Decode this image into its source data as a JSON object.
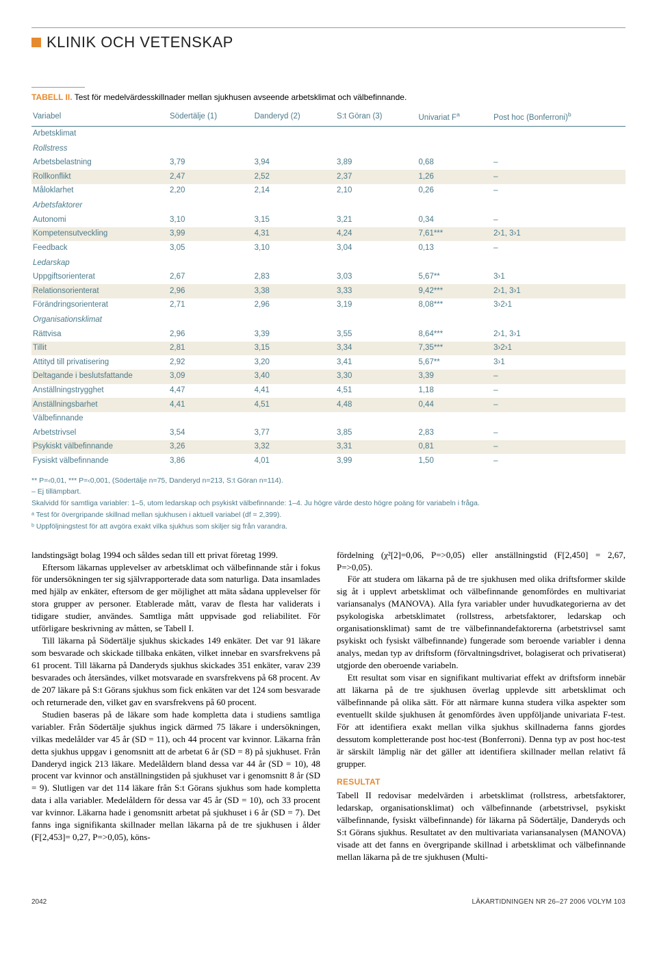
{
  "heading": "KLINIK OCH VETENSKAP",
  "colors": {
    "accent": "#e68a2e",
    "table_text": "#4a7a8a",
    "highlight_bg": "#f0ece0",
    "rule": "#999999",
    "body_text": "#000000",
    "background": "#ffffff"
  },
  "typography": {
    "heading_family": "Arial, Helvetica, sans-serif",
    "heading_size_pt": 17,
    "body_family": "Georgia, serif",
    "body_size_pt": 10,
    "table_size_pt": 9,
    "footnote_size_pt": 8
  },
  "table": {
    "label": "TABELL II.",
    "caption": "Test för medelvärdesskillnader mellan sjukhusen avseende arbetsklimat och välbefinnande.",
    "columns": [
      "Variabel",
      "Södertälje (1)",
      "Danderyd (2)",
      "S:t Göran (3)",
      "Univariat F",
      "Post hoc (Bonferroni)"
    ],
    "col_sup": [
      "",
      "",
      "",
      "",
      "a",
      "b"
    ],
    "groups": [
      {
        "title": "Arbetsklimat",
        "subgroups": [
          {
            "title": "Rollstress",
            "rows": [
              {
                "label": "Arbetsbelastning",
                "v": [
                  "3,79",
                  "3,94",
                  "3,89",
                  "0,68",
                  "–"
                ],
                "hl": false
              },
              {
                "label": "Rollkonflikt",
                "v": [
                  "2,47",
                  "2,52",
                  "2,37",
                  "1,26",
                  "–"
                ],
                "hl": true
              },
              {
                "label": "Måloklarhet",
                "v": [
                  "2,20",
                  "2,14",
                  "2,10",
                  "0,26",
                  "–"
                ],
                "hl": false
              }
            ]
          },
          {
            "title": "Arbetsfaktorer",
            "rows": [
              {
                "label": "Autonomi",
                "v": [
                  "3,10",
                  "3,15",
                  "3,21",
                  "0,34",
                  "–"
                ],
                "hl": false
              },
              {
                "label": "Kompetensutveckling",
                "v": [
                  "3,99",
                  "4,31",
                  "4,24",
                  "7,61***",
                  "2›1, 3›1"
                ],
                "hl": true
              },
              {
                "label": "Feedback",
                "v": [
                  "3,05",
                  "3,10",
                  "3,04",
                  "0,13",
                  "–"
                ],
                "hl": false
              }
            ]
          },
          {
            "title": "Ledarskap",
            "rows": [
              {
                "label": "Uppgiftsorienterat",
                "v": [
                  "2,67",
                  "2,83",
                  "3,03",
                  "5,67**",
                  "3›1"
                ],
                "hl": false
              },
              {
                "label": "Relationsorienterat",
                "v": [
                  "2,96",
                  "3,38",
                  "3,33",
                  "9,42***",
                  "2›1, 3›1"
                ],
                "hl": true
              },
              {
                "label": "Förändringsorienterat",
                "v": [
                  "2,71",
                  "2,96",
                  "3,19",
                  "8,08***",
                  "3›2›1"
                ],
                "hl": false
              }
            ]
          },
          {
            "title": "Organisationsklimat",
            "rows": [
              {
                "label": "Rättvisa",
                "v": [
                  "2,96",
                  "3,39",
                  "3,55",
                  "8,64***",
                  "2›1, 3›1"
                ],
                "hl": false
              },
              {
                "label": "Tillit",
                "v": [
                  "2,81",
                  "3,15",
                  "3,34",
                  "7,35***",
                  "3›2›1"
                ],
                "hl": true
              },
              {
                "label": "Attityd till privatisering",
                "v": [
                  "2,92",
                  "3,20",
                  "3,41",
                  "5,67**",
                  "3›1"
                ],
                "hl": false
              },
              {
                "label": "Deltagande i beslutsfattande",
                "v": [
                  "3,09",
                  "3,40",
                  "3,30",
                  "3,39",
                  "–"
                ],
                "hl": true
              },
              {
                "label": "Anställningstrygghet",
                "v": [
                  "4,47",
                  "4,41",
                  "4,51",
                  "1,18",
                  "–"
                ],
                "hl": false
              },
              {
                "label": "Anställningsbarhet",
                "v": [
                  "4,41",
                  "4,51",
                  "4,48",
                  "0,44",
                  "–"
                ],
                "hl": true
              }
            ]
          }
        ]
      },
      {
        "title": "Välbefinnande",
        "subgroups": [
          {
            "title": null,
            "rows": [
              {
                "label": "Arbetstrivsel",
                "v": [
                  "3,54",
                  "3,77",
                  "3,85",
                  "2,83",
                  "–"
                ],
                "hl": false
              },
              {
                "label": "Psykiskt välbefinnande",
                "v": [
                  "3,26",
                  "3,32",
                  "3,31",
                  "0,81",
                  "–"
                ],
                "hl": true
              },
              {
                "label": "Fysiskt välbefinnande",
                "v": [
                  "3,86",
                  "4,01",
                  "3,99",
                  "1,50",
                  "–"
                ],
                "hl": false
              }
            ]
          }
        ]
      }
    ]
  },
  "footnotes": [
    "** P=‹0,01, *** P=‹0,001, (Södertälje n=75, Danderyd n=213, S:t Göran n=114).",
    "– Ej tillämpbart.",
    "Skalvidd för samtliga variabler: 1–5, utom ledarskap och psykiskt välbefinnande: 1–4. Ju högre värde desto högre poäng för variabeln i fråga.",
    "ᵃ Test för övergripande skillnad mellan sjukhusen i aktuell variabel (df = 2,399).",
    "ᵇ Uppföljningstest för att avgöra exakt vilka sjukhus som skiljer sig från varandra."
  ],
  "body": {
    "left": [
      "landstingsägt bolag 1994 och såldes sedan till ett privat företag 1999.",
      "Eftersom läkarnas upplevelser av arbetsklimat och välbefinnande står i fokus för undersökningen ter sig självrapporterade data som naturliga. Data insamlades med hjälp av enkäter, eftersom de ger möjlighet att mäta sådana upplevelser för stora grupper av personer. Etablerade mått, varav de flesta har validerats i tidigare studier, användes. Samtliga mått uppvisade god reliabilitet. För utförligare beskrivning av måtten, se Tabell I.",
      "Till läkarna på Södertälje sjukhus skickades 149 enkäter. Det var 91 läkare som besvarade och skickade tillbaka enkäten, vilket innebar en svarsfrekvens på 61 procent. Till läkarna på Danderyds sjukhus skickades 351 enkäter, varav 239 besvarades och återsändes, vilket motsvarade en svarsfrekvens på 68 procent. Av de 207 läkare på S:t Görans sjukhus som fick enkäten var det 124 som besvarade och returnerade den, vilket gav en svarsfrekvens på 60 procent.",
      "Studien baseras på de läkare som hade kompletta data i studiens samtliga variabler. Från Södertälje sjukhus ingick därmed 75 läkare i undersökningen, vilkas medelålder var 45 år (SD = 11), och 44 procent var kvinnor. Läkarna från detta sjukhus uppgav i genomsnitt att de arbetat 6 år (SD = 8) på sjukhuset. Från Danderyd ingick 213 läkare. Medelåldern bland dessa var 44 år (SD = 10), 48 procent var kvinnor och anställningstiden på sjukhuset var i genomsnitt 8 år (SD = 9). Slutligen var det 114 läkare från S:t Görans sjukhus som hade kompletta data i alla variabler. Medelåldern för dessa var 45 år (SD = 10), och 33 procent var kvinnor. Läkarna hade i genomsnitt arbetat på sjukhuset i 6 år (SD = 7). Det fanns inga signifikanta skillnader mellan läkarna på de tre sjukhusen i ålder (F[2,453]= 0,27, P=>0,05), köns-"
    ],
    "right": [
      "fördelning (χ²[2]=0,06, P=>0,05) eller anställningstid (F[2,450] = 2,67, P=>0,05).",
      "För att studera om läkarna på de tre sjukhusen med olika driftsformer skilde sig åt i upplevt arbetsklimat och välbefinnande genomfördes en multivariat variansanalys (MANOVA). Alla fyra variabler under huvudkategorierna av det psykologiska arbetsklimatet (rollstress, arbetsfaktorer, ledarskap och organisationsklimat) samt de tre välbefinnandefaktorerna (arbetstrivsel samt psykiskt och fysiskt välbefinnande) fungerade som beroende variabler i denna analys, medan typ av driftsform (förvaltningsdrivet, bolagiserat och privatiserat) utgjorde den oberoende variabeln.",
      "Ett resultat som visar en signifikant multivariat effekt av driftsform innebär att läkarna på de tre sjukhusen överlag upplevde sitt arbetsklimat och välbefinnande på olika sätt. För att närmare kunna studera vilka aspekter som eventuellt skilde sjukhusen åt genomfördes även uppföljande univariata F-test. För att identifiera exakt mellan vilka sjukhus skillnaderna fanns gjordes dessutom kompletterande post hoc-test (Bonferroni). Denna typ av post hoc-test är särskilt lämplig när det gäller att identifiera skillnader mellan relativt få grupper."
    ],
    "result_heading": "RESULTAT",
    "result_para": "Tabell II redovisar medelvärden i arbetsklimat (rollstress, arbetsfaktorer, ledarskap, organisationsklimat) och välbefinnande (arbetstrivsel, psykiskt välbefinnande, fysiskt välbefinnande) för läkarna på Södertälje, Danderyds och S:t Görans sjukhus. Resultatet av den multivariata variansanalysen (MANOVA) visade att det fanns en övergripande skillnad i arbetsklimat och välbefinnande mellan läkarna på de tre sjukhusen (Multi-"
  },
  "footer": {
    "page": "2042",
    "journal": "LÄKARTIDNINGEN NR 26–27 2006 VOLYM 103"
  }
}
